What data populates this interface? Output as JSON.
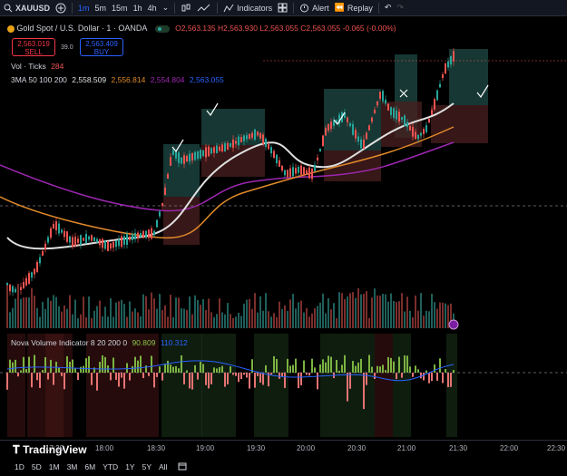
{
  "toolbar": {
    "symbol": "XAUUSD",
    "timeframes": [
      "1m",
      "5m",
      "15m",
      "1h",
      "4h"
    ],
    "active_timeframe": "1m",
    "indicators_label": "Indicators",
    "alert_label": "Alert",
    "replay_label": "Replay"
  },
  "legend": {
    "title": "Gold Spot / U.S. Dollar · 1 · OANDA",
    "ohlc": {
      "o": "O2,563.135",
      "h": "H2,563.930",
      "l": "L2,563.055",
      "c": "C2,563.055",
      "chg": "-0.065 (-0.00%)"
    },
    "sell_price": "2,563.019",
    "sell_label": "SELL",
    "spread": "39.0",
    "buy_price": "2,563.409",
    "buy_label": "BUY",
    "vol_label": "Vol · Ticks",
    "vol_value": "284",
    "ma_label": "3MA 50 100 200",
    "ma50": "2,558.509",
    "ma100": "2,556.814",
    "ma200": "2,554.804",
    "ma_extra": "2,563.055",
    "nova_label": "Nova Volume Indicator 8 20 200 0",
    "nova_v1": "90.809",
    "nova_v2": "110.312"
  },
  "watermark": "TradingView",
  "time_axis": [
    "17:30",
    "18:00",
    "18:30",
    "19:00",
    "19:30",
    "20:00",
    "20:30",
    "21:00",
    "21:30",
    "22:00",
    "22:30"
  ],
  "ranges": [
    "1D",
    "5D",
    "1M",
    "3M",
    "6M",
    "YTD",
    "1Y",
    "5Y",
    "All"
  ],
  "colors": {
    "up": "#26a69a",
    "down": "#ef5350",
    "ma50": "#e0e0e0",
    "ma100": "#e08a2a",
    "ma200": "#9c27b0",
    "accent": "#2962ff"
  }
}
